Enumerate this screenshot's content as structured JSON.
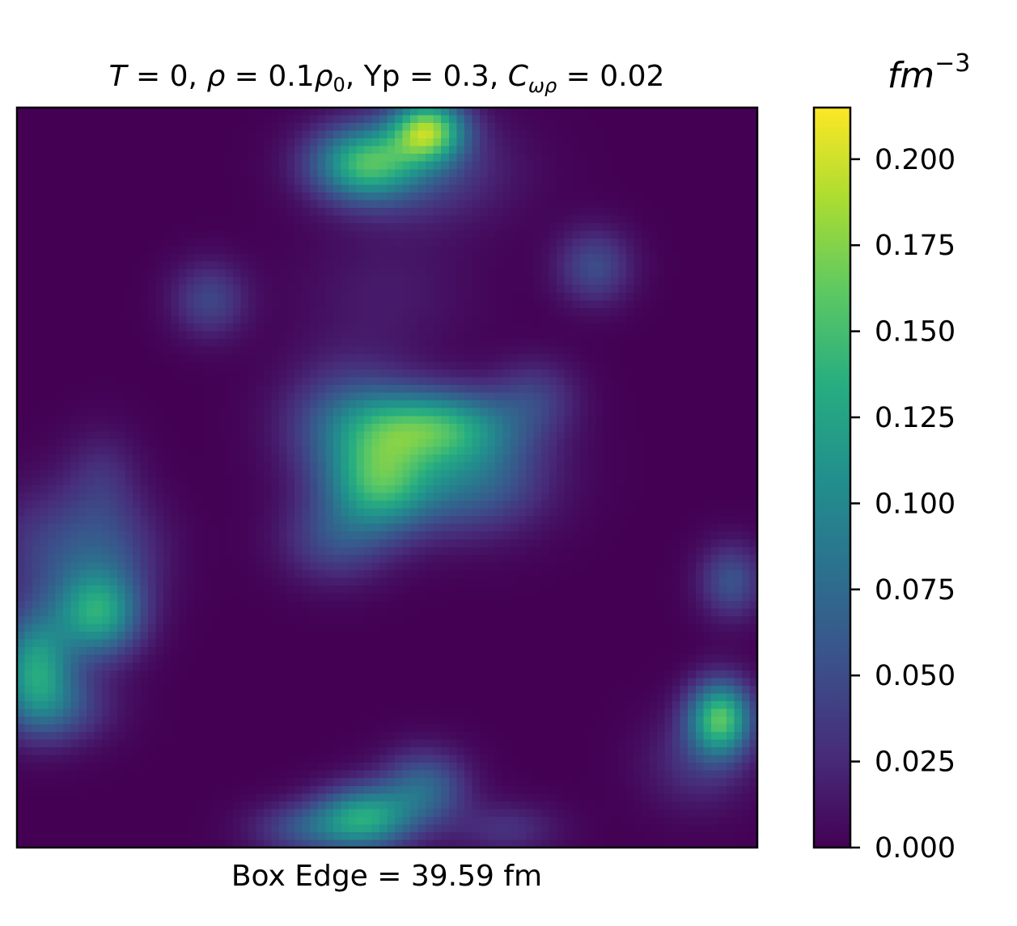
{
  "chart_data": {
    "type": "heatmap",
    "title": {
      "T_label": "T",
      "T_value": "0",
      "rho_label": "ρ",
      "rho_value": "0.1",
      "rho0_base": "ρ",
      "rho0_sub": "0",
      "yp_text": "Yp = 0.3",
      "C_label": "C",
      "C_sub": "ωρ",
      "C_value": "0.02"
    },
    "xlabel": "Box Edge = 39.59 fm",
    "colorbar": {
      "label_base": "fm",
      "label_exp": "−3",
      "colormap": "viridis",
      "vmin": 0.0,
      "vmax": 0.215,
      "ticks": [
        0.0,
        0.025,
        0.05,
        0.075,
        0.1,
        0.125,
        0.15,
        0.175,
        0.2
      ],
      "tick_labels": [
        "0.000",
        "0.025",
        "0.050",
        "0.075",
        "0.100",
        "0.125",
        "0.150",
        "0.175",
        "0.200"
      ]
    },
    "grid": false,
    "axes_ticks_shown": false,
    "field_resolution": [
      96,
      96
    ],
    "field_extent": [
      0,
      1,
      0,
      1
    ],
    "blobs": [
      {
        "x": 0.555,
        "y": 0.03,
        "amp": 0.16,
        "sx": 0.035,
        "sy": 0.03
      },
      {
        "x": 0.47,
        "y": 0.075,
        "amp": 0.13,
        "sx": 0.05,
        "sy": 0.035
      },
      {
        "x": 0.55,
        "y": 0.085,
        "amp": 0.04,
        "sx": 0.08,
        "sy": 0.05
      },
      {
        "x": 0.78,
        "y": 0.215,
        "amp": 0.05,
        "sx": 0.035,
        "sy": 0.035
      },
      {
        "x": 0.26,
        "y": 0.26,
        "amp": 0.045,
        "sx": 0.035,
        "sy": 0.035
      },
      {
        "x": 0.56,
        "y": 0.43,
        "amp": 0.12,
        "sx": 0.075,
        "sy": 0.035
      },
      {
        "x": 0.49,
        "y": 0.51,
        "amp": 0.115,
        "sx": 0.05,
        "sy": 0.045
      },
      {
        "x": 0.61,
        "y": 0.5,
        "amp": 0.075,
        "sx": 0.07,
        "sy": 0.05
      },
      {
        "x": 0.45,
        "y": 0.43,
        "amp": 0.06,
        "sx": 0.06,
        "sy": 0.06
      },
      {
        "x": 0.43,
        "y": 0.585,
        "amp": 0.045,
        "sx": 0.05,
        "sy": 0.04
      },
      {
        "x": 0.7,
        "y": 0.39,
        "amp": 0.035,
        "sx": 0.04,
        "sy": 0.035
      },
      {
        "x": 0.11,
        "y": 0.685,
        "amp": 0.12,
        "sx": 0.04,
        "sy": 0.04
      },
      {
        "x": 0.025,
        "y": 0.755,
        "amp": 0.115,
        "sx": 0.035,
        "sy": 0.05
      },
      {
        "x": 0.05,
        "y": 0.6,
        "amp": 0.04,
        "sx": 0.06,
        "sy": 0.06
      },
      {
        "x": 0.13,
        "y": 0.6,
        "amp": 0.035,
        "sx": 0.05,
        "sy": 0.05
      },
      {
        "x": 0.055,
        "y": 0.81,
        "amp": 0.05,
        "sx": 0.05,
        "sy": 0.035
      },
      {
        "x": 0.115,
        "y": 0.5,
        "amp": 0.025,
        "sx": 0.035,
        "sy": 0.045
      },
      {
        "x": 0.95,
        "y": 0.825,
        "amp": 0.15,
        "sx": 0.03,
        "sy": 0.035
      },
      {
        "x": 0.965,
        "y": 0.64,
        "amp": 0.055,
        "sx": 0.03,
        "sy": 0.035
      },
      {
        "x": 0.92,
        "y": 0.885,
        "amp": 0.03,
        "sx": 0.05,
        "sy": 0.045
      },
      {
        "x": 0.47,
        "y": 0.96,
        "amp": 0.12,
        "sx": 0.045,
        "sy": 0.03
      },
      {
        "x": 0.55,
        "y": 0.92,
        "amp": 0.07,
        "sx": 0.04,
        "sy": 0.035
      },
      {
        "x": 0.39,
        "y": 0.975,
        "amp": 0.05,
        "sx": 0.05,
        "sy": 0.025
      },
      {
        "x": 0.66,
        "y": 0.975,
        "amp": 0.03,
        "sx": 0.05,
        "sy": 0.025
      },
      {
        "x": 0.5,
        "y": 0.25,
        "amp": 0.015,
        "sx": 0.08,
        "sy": 0.06
      }
    ]
  }
}
